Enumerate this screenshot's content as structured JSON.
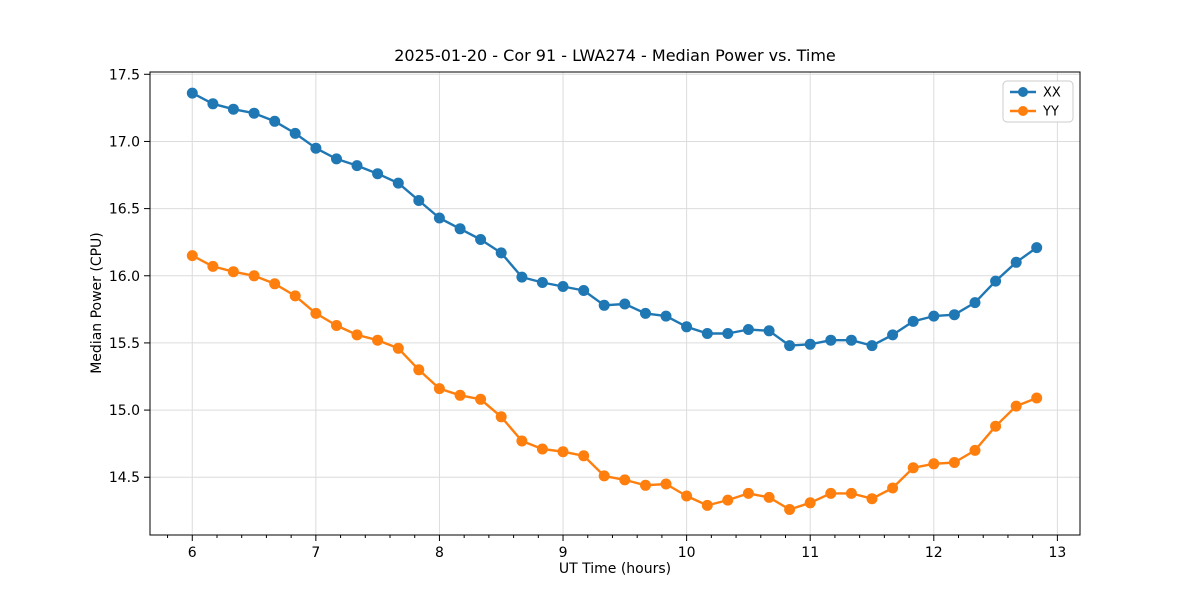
{
  "chart_data": {
    "type": "line",
    "title": "2025-01-20 - Cor 91 - LWA274 - Median Power vs. Time",
    "xlabel": "UT Time (hours)",
    "ylabel": "Median Power (CPU)",
    "xlim": [
      5.658,
      13.183
    ],
    "ylim": [
      14.07,
      17.517
    ],
    "x_ticks": [
      6,
      7,
      8,
      9,
      10,
      11,
      12,
      13
    ],
    "x_tick_labels": [
      "6",
      "7",
      "8",
      "9",
      "10",
      "11",
      "12",
      "13"
    ],
    "x_minor_tick_step": 0.2,
    "y_ticks": [
      14.5,
      15.0,
      15.5,
      16.0,
      16.5,
      17.0,
      17.5
    ],
    "y_tick_labels": [
      "14.5",
      "15.0",
      "15.5",
      "16.0",
      "16.5",
      "17.0",
      "17.5"
    ],
    "grid": true,
    "legend_position": "upper right",
    "x": [
      6.0,
      6.167,
      6.333,
      6.5,
      6.667,
      6.833,
      7.0,
      7.167,
      7.333,
      7.5,
      7.667,
      7.833,
      8.0,
      8.167,
      8.333,
      8.5,
      8.667,
      8.833,
      9.0,
      9.167,
      9.333,
      9.5,
      9.667,
      9.833,
      10.0,
      10.167,
      10.333,
      10.5,
      10.667,
      10.833,
      11.0,
      11.167,
      11.333,
      11.5,
      11.667,
      11.833,
      12.0,
      12.167,
      12.333,
      12.5,
      12.667,
      12.833
    ],
    "series": [
      {
        "name": "XX",
        "color": "#1f77b4",
        "values": [
          17.36,
          17.28,
          17.24,
          17.21,
          17.15,
          17.06,
          16.95,
          16.87,
          16.82,
          16.76,
          16.69,
          16.56,
          16.43,
          16.35,
          16.27,
          16.17,
          15.99,
          15.95,
          15.92,
          15.89,
          15.78,
          15.79,
          15.72,
          15.7,
          15.62,
          15.57,
          15.57,
          15.6,
          15.59,
          15.48,
          15.49,
          15.52,
          15.52,
          15.48,
          15.56,
          15.66,
          15.7,
          15.71,
          15.8,
          15.96,
          16.1,
          16.21
        ]
      },
      {
        "name": "YY",
        "color": "#ff7f0e",
        "values": [
          16.15,
          16.07,
          16.03,
          16.0,
          15.94,
          15.85,
          15.72,
          15.63,
          15.56,
          15.52,
          15.46,
          15.3,
          15.16,
          15.11,
          15.08,
          14.95,
          14.77,
          14.71,
          14.69,
          14.66,
          14.51,
          14.48,
          14.44,
          14.45,
          14.36,
          14.29,
          14.33,
          14.38,
          14.35,
          14.26,
          14.31,
          14.38,
          14.38,
          14.34,
          14.42,
          14.57,
          14.6,
          14.61,
          14.7,
          14.88,
          15.03,
          15.09
        ]
      }
    ]
  },
  "colors": {
    "background": "#ffffff",
    "grid": "#dcdcdc",
    "spine": "#000000",
    "tick_text": "#000000",
    "legend_border": "#cccccc",
    "legend_background": "#ffffff"
  }
}
